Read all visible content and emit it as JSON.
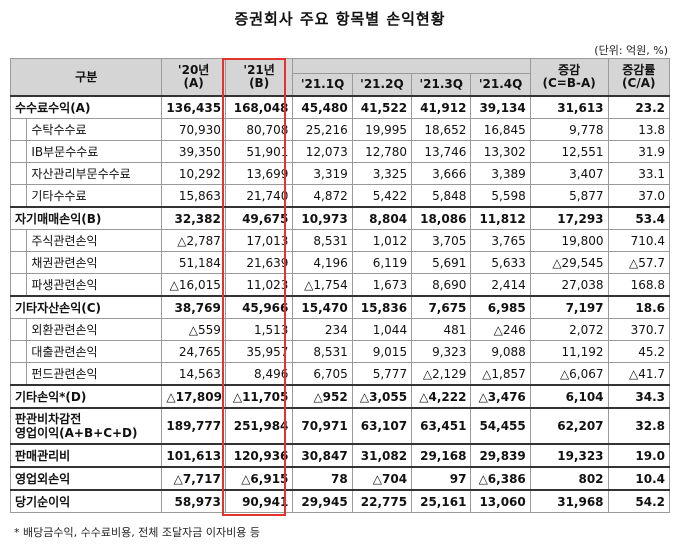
{
  "title": "증권회사 주요 항목별 손익현황",
  "unit": "(단위: 억원, %)",
  "headers": {
    "category": "구분",
    "y20": "'20년",
    "y20sub": "(A)",
    "y21": "'21년",
    "y21sub": "(B)",
    "q1": "'21.1Q",
    "q2": "'21.2Q",
    "q3": "'21.3Q",
    "q4": "'21.4Q",
    "diff": "증감",
    "diffsub": "(C=B-A)",
    "rate": "증감률",
    "ratesub": "(C/A)"
  },
  "rows": [
    {
      "type": "major",
      "label": "수수료수익(A)",
      "values": [
        "136,435",
        "168,048",
        "45,480",
        "41,522",
        "41,912",
        "39,134",
        "31,613",
        "23.2"
      ]
    },
    {
      "type": "minor",
      "label": "수탁수수료",
      "values": [
        "70,930",
        "80,708",
        "25,216",
        "19,995",
        "18,652",
        "16,845",
        "9,778",
        "13.8"
      ]
    },
    {
      "type": "minor",
      "label": "IB부문수수료",
      "values": [
        "39,350",
        "51,901",
        "12,073",
        "12,780",
        "13,746",
        "13,302",
        "12,551",
        "31.9"
      ]
    },
    {
      "type": "minor",
      "label": "자산관리부문수수료",
      "values": [
        "10,292",
        "13,699",
        "3,319",
        "3,325",
        "3,666",
        "3,389",
        "3,407",
        "33.1"
      ]
    },
    {
      "type": "minor",
      "label": "기타수수료",
      "values": [
        "15,863",
        "21,740",
        "4,872",
        "5,422",
        "5,848",
        "5,598",
        "5,877",
        "37.0"
      ]
    },
    {
      "type": "major",
      "label": "자기매매손익(B)",
      "values": [
        "32,382",
        "49,675",
        "10,973",
        "8,804",
        "18,086",
        "11,812",
        "17,293",
        "53.4"
      ]
    },
    {
      "type": "minor",
      "label": "주식관련손익",
      "values": [
        "△2,787",
        "17,013",
        "8,531",
        "1,012",
        "3,705",
        "3,765",
        "19,800",
        "710.4"
      ]
    },
    {
      "type": "minor",
      "label": "채권관련손익",
      "values": [
        "51,184",
        "21,639",
        "4,196",
        "6,119",
        "5,691",
        "5,633",
        "△29,545",
        "△57.7"
      ]
    },
    {
      "type": "minor",
      "label": "파생관련손익",
      "values": [
        "△16,015",
        "11,023",
        "△1,754",
        "1,673",
        "8,690",
        "2,414",
        "27,038",
        "168.8"
      ]
    },
    {
      "type": "major",
      "label": "기타자산손익(C)",
      "values": [
        "38,769",
        "45,966",
        "15,470",
        "15,836",
        "7,675",
        "6,985",
        "7,197",
        "18.6"
      ]
    },
    {
      "type": "minor",
      "label": "외환관련손익",
      "values": [
        "△559",
        "1,513",
        "234",
        "1,044",
        "481",
        "△246",
        "2,072",
        "370.7"
      ]
    },
    {
      "type": "minor",
      "label": "대출관련손익",
      "values": [
        "24,765",
        "35,957",
        "8,531",
        "9,015",
        "9,323",
        "9,088",
        "11,192",
        "45.2"
      ]
    },
    {
      "type": "minor",
      "label": "펀드관련손익",
      "values": [
        "14,563",
        "8,496",
        "6,705",
        "5,777",
        "△2,129",
        "△1,857",
        "△6,067",
        "△41.7"
      ]
    },
    {
      "type": "major",
      "label": "기타손익*(D)",
      "values": [
        "△17,809",
        "△11,705",
        "△952",
        "△3,055",
        "△4,222",
        "△3,476",
        "6,104",
        "34.3"
      ]
    },
    {
      "type": "tall",
      "label": "판관비차감전",
      "label2": "영업이익(A+B+C+D)",
      "values": [
        "189,777",
        "251,984",
        "70,971",
        "63,107",
        "63,451",
        "54,455",
        "62,207",
        "32.8"
      ]
    },
    {
      "type": "plain",
      "label": "판매관리비",
      "values": [
        "101,613",
        "120,936",
        "30,847",
        "31,082",
        "29,168",
        "29,839",
        "19,323",
        "19.0"
      ]
    },
    {
      "type": "plain",
      "label": "영업외손익",
      "values": [
        "△7,717",
        "△6,915",
        "78",
        "△704",
        "97",
        "△6,386",
        "802",
        "10.4"
      ]
    },
    {
      "type": "major",
      "label": "당기순이익",
      "values": [
        "58,973",
        "90,941",
        "29,945",
        "22,775",
        "25,161",
        "13,060",
        "31,968",
        "54.2"
      ]
    }
  ],
  "footnote": "* 배당금수익, 수수료비용, 전체 조달자금 이자비용 등"
}
